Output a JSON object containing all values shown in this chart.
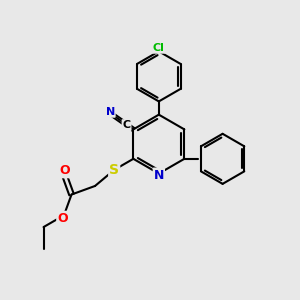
{
  "bg_color": "#e8e8e8",
  "bond_color": "#000000",
  "bond_width": 1.5,
  "atom_colors": {
    "N": "#0000cc",
    "O": "#ff0000",
    "S": "#cccc00",
    "Cl": "#00bb00",
    "CN_N": "#0000cc"
  },
  "font_size": 8,
  "fig_size": [
    3.0,
    3.0
  ],
  "dpi": 100
}
